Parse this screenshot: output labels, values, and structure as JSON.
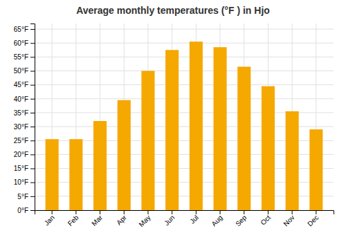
{
  "chart_data": {
    "type": "bar",
    "title": "Average monthly temperatures (°F ) in Hjo",
    "categories": [
      "Jan",
      "Feb",
      "Mar",
      "Apr",
      "May",
      "Jun",
      "Jul",
      "Aug",
      "Sep",
      "Oct",
      "Nov",
      "Dec"
    ],
    "values": [
      25.5,
      25.5,
      32.0,
      39.5,
      50.0,
      57.5,
      60.5,
      58.5,
      51.5,
      44.5,
      35.5,
      29.0
    ],
    "color": "#F5A800",
    "ylim": [
      0,
      67
    ],
    "yticks": [
      {
        "value": 0,
        "label": "0°F"
      },
      {
        "value": 5,
        "label": "5°F"
      },
      {
        "value": 10,
        "label": "10°F"
      },
      {
        "value": 15,
        "label": "15°F"
      },
      {
        "value": 20,
        "label": "20°F"
      },
      {
        "value": 25,
        "label": "25°F"
      },
      {
        "value": 30,
        "label": "30°F"
      },
      {
        "value": 35,
        "label": "35°F"
      },
      {
        "value": 40,
        "label": "40°F"
      },
      {
        "value": 45,
        "label": "45°F"
      },
      {
        "value": 50,
        "label": "50°F"
      },
      {
        "value": 55,
        "label": "55°F"
      },
      {
        "value": 60,
        "label": "60°F"
      },
      {
        "value": 65,
        "label": "65°F"
      }
    ],
    "grid": true
  }
}
